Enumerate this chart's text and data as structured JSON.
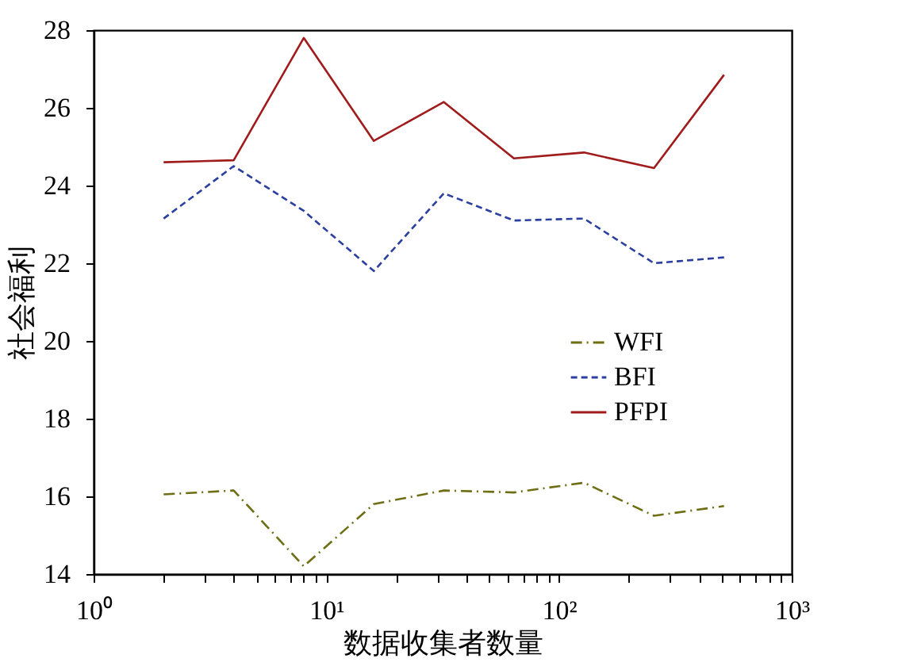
{
  "chart_data": {
    "type": "line",
    "xlabel": "数据收集者数量",
    "ylabel": "社会福利",
    "x": [
      2,
      4,
      8,
      16,
      32,
      64,
      128,
      256,
      512
    ],
    "series": [
      {
        "name": "WFI",
        "color": "#6e6e14",
        "line_style": "dashdot",
        "values": [
          16.05,
          16.15,
          14.2,
          15.8,
          16.15,
          16.1,
          16.35,
          15.5,
          15.75
        ]
      },
      {
        "name": "BFI",
        "color": "#2a3f9f",
        "line_style": "dashed",
        "values": [
          23.15,
          24.5,
          23.35,
          21.8,
          23.8,
          23.1,
          23.15,
          22.0,
          22.15
        ]
      },
      {
        "name": "PFPI",
        "color": "#a01c1c",
        "line_style": "solid",
        "values": [
          24.6,
          24.65,
          27.8,
          25.15,
          26.15,
          24.7,
          24.85,
          24.45,
          26.85
        ]
      }
    ],
    "log": "x",
    "xlim": [
      1,
      1000
    ],
    "xticks": [
      {
        "value": 1,
        "label": "10⁰"
      },
      {
        "value": 2,
        "label": null
      },
      {
        "value": 3,
        "label": null
      },
      {
        "value": 4,
        "label": null
      },
      {
        "value": 5,
        "label": null
      },
      {
        "value": 6,
        "label": null
      },
      {
        "value": 7,
        "label": null
      },
      {
        "value": 8,
        "label": null
      },
      {
        "value": 9,
        "label": null
      },
      {
        "value": 10,
        "label": "10¹"
      },
      {
        "value": 20,
        "label": null
      },
      {
        "value": 30,
        "label": null
      },
      {
        "value": 40,
        "label": null
      },
      {
        "value": 50,
        "label": null
      },
      {
        "value": 60,
        "label": null
      },
      {
        "value": 70,
        "label": null
      },
      {
        "value": 80,
        "label": null
      },
      {
        "value": 90,
        "label": null
      },
      {
        "value": 100,
        "label": "10²"
      },
      {
        "value": 200,
        "label": null
      },
      {
        "value": 300,
        "label": null
      },
      {
        "value": 400,
        "label": null
      },
      {
        "value": 500,
        "label": null
      },
      {
        "value": 600,
        "label": null
      },
      {
        "value": 700,
        "label": null
      },
      {
        "value": 800,
        "label": null
      },
      {
        "value": 900,
        "label": null
      },
      {
        "value": 1000,
        "label": "10³"
      }
    ],
    "ylim": [
      14,
      28
    ],
    "yticks": [
      14,
      16,
      18,
      20,
      22,
      24,
      26,
      28
    ],
    "grid": false,
    "legend": "right",
    "marker": "none"
  }
}
